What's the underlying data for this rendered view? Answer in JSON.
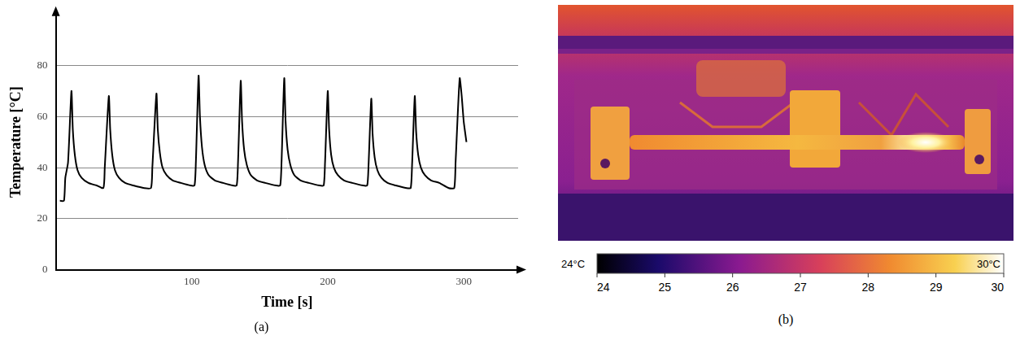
{
  "chart_data": {
    "type": "line",
    "title": "(a)",
    "x_label": "Time [s]",
    "y_label": "Temperature [°C]",
    "x": [
      3,
      6,
      7,
      9,
      11.5,
      12.5,
      14,
      16,
      19,
      24,
      30,
      35,
      36,
      39,
      40,
      41.5,
      43.5,
      46.5,
      51,
      57,
      65,
      70,
      71,
      74,
      75,
      76.5,
      78.5,
      81.5,
      86,
      92,
      99,
      102,
      103,
      105,
      106,
      107.5,
      109.5,
      112.5,
      117,
      123,
      130,
      133,
      134,
      136,
      137,
      138.5,
      140.5,
      143.5,
      148,
      154,
      162,
      165,
      166,
      168,
      169,
      170.5,
      172.5,
      175.5,
      180,
      186,
      194,
      197,
      198,
      200,
      201,
      202.5,
      204.5,
      207.5,
      212,
      218,
      226,
      229,
      230,
      232,
      233,
      234.5,
      236.5,
      239.5,
      244,
      250,
      258,
      261,
      262,
      264,
      265,
      266.5,
      268.5,
      271.5,
      276,
      282,
      289,
      293,
      294,
      297,
      298.5,
      300,
      302
    ],
    "values": [
      27,
      27,
      36,
      42,
      70,
      55,
      45,
      39,
      36,
      34,
      33,
      32,
      40,
      68,
      55,
      45,
      39,
      36,
      34,
      33,
      32,
      32,
      40,
      69,
      55,
      46,
      40,
      37,
      35,
      34,
      33,
      33,
      42,
      76,
      60,
      48,
      41,
      37,
      35,
      34,
      33,
      33,
      42,
      74,
      58,
      47,
      41,
      37,
      35,
      34,
      33,
      33,
      42,
      75,
      58,
      47,
      41,
      37,
      35,
      34,
      33,
      33,
      42,
      70,
      55,
      45,
      40,
      37,
      35,
      34,
      33,
      33,
      41,
      67,
      53,
      44,
      39,
      36,
      34,
      33,
      32,
      32,
      41,
      68,
      54,
      45,
      40,
      37,
      35,
      34,
      32,
      32,
      42,
      75,
      68,
      58,
      50
    ],
    "color": "#000000",
    "xlim": [
      0,
      340
    ],
    "xticks": [
      100,
      200,
      300
    ],
    "ylim": [
      0,
      100
    ],
    "yticks": [
      0,
      20,
      40,
      60,
      80
    ],
    "grid": "y"
  },
  "thermal_image": {
    "title": "(b)",
    "colorbar": {
      "range": [
        24,
        30
      ],
      "ticks": [
        24,
        25,
        26,
        27,
        28,
        29,
        30
      ],
      "end_labels": [
        "24°C",
        "30°C"
      ]
    }
  }
}
